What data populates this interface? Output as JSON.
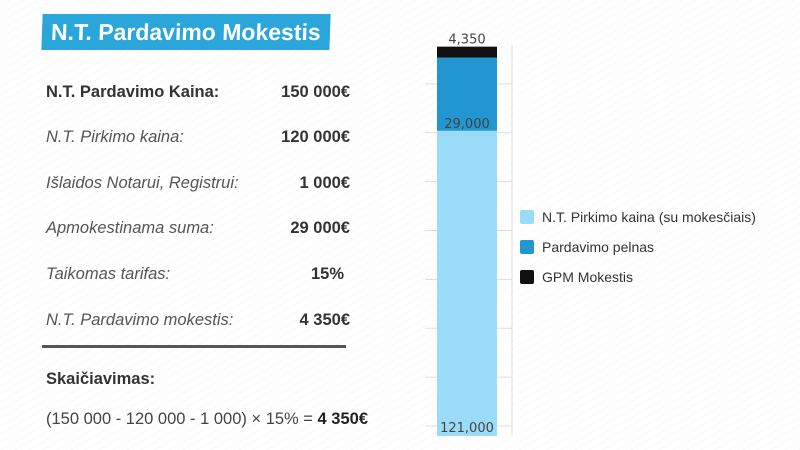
{
  "title": "N.T. Pardavimo Mokestis",
  "rows": [
    {
      "label": "N.T. Pardavimo Kaina:",
      "value": "150 000€"
    },
    {
      "label": "N.T. Pirkimo kaina:",
      "value": "120 000€"
    },
    {
      "label": "Išlaidos Notarui, Registrui:",
      "value": "1 000€"
    },
    {
      "label": "Apmokestinama suma:",
      "value": "29 000€"
    },
    {
      "label": "Taikomas tarifas:",
      "value": "15%"
    },
    {
      "label": "N.T. Pardavimo mokestis:",
      "value": "4 350€"
    }
  ],
  "calc": {
    "title": "Skaičiavimas:",
    "formula": "(150 000 - 120 000 - 1 000) × 15% = ",
    "result": "4 350€"
  },
  "colors": {
    "banner": "#2aa6db",
    "purchase": "#9adcf7",
    "profit": "#2196d0",
    "tax": "#111111"
  },
  "chart_data": {
    "type": "bar",
    "stacked": true,
    "categories": [
      ""
    ],
    "series": [
      {
        "name": "N.T. Pirkimo kaina (su mokesčiais)",
        "values": [
          121000
        ],
        "label": "121,000",
        "color": "#9adcf7"
      },
      {
        "name": "Pardavimo pelnas",
        "values": [
          29000
        ],
        "label": "29,000",
        "color": "#2196d0"
      },
      {
        "name": "GPM Mokestis",
        "values": [
          4350
        ],
        "label": "4,350",
        "color": "#111111"
      }
    ],
    "title": "",
    "xlabel": "",
    "ylabel": "",
    "ylim": [
      0,
      155000
    ],
    "grid": true,
    "legend": "right"
  }
}
